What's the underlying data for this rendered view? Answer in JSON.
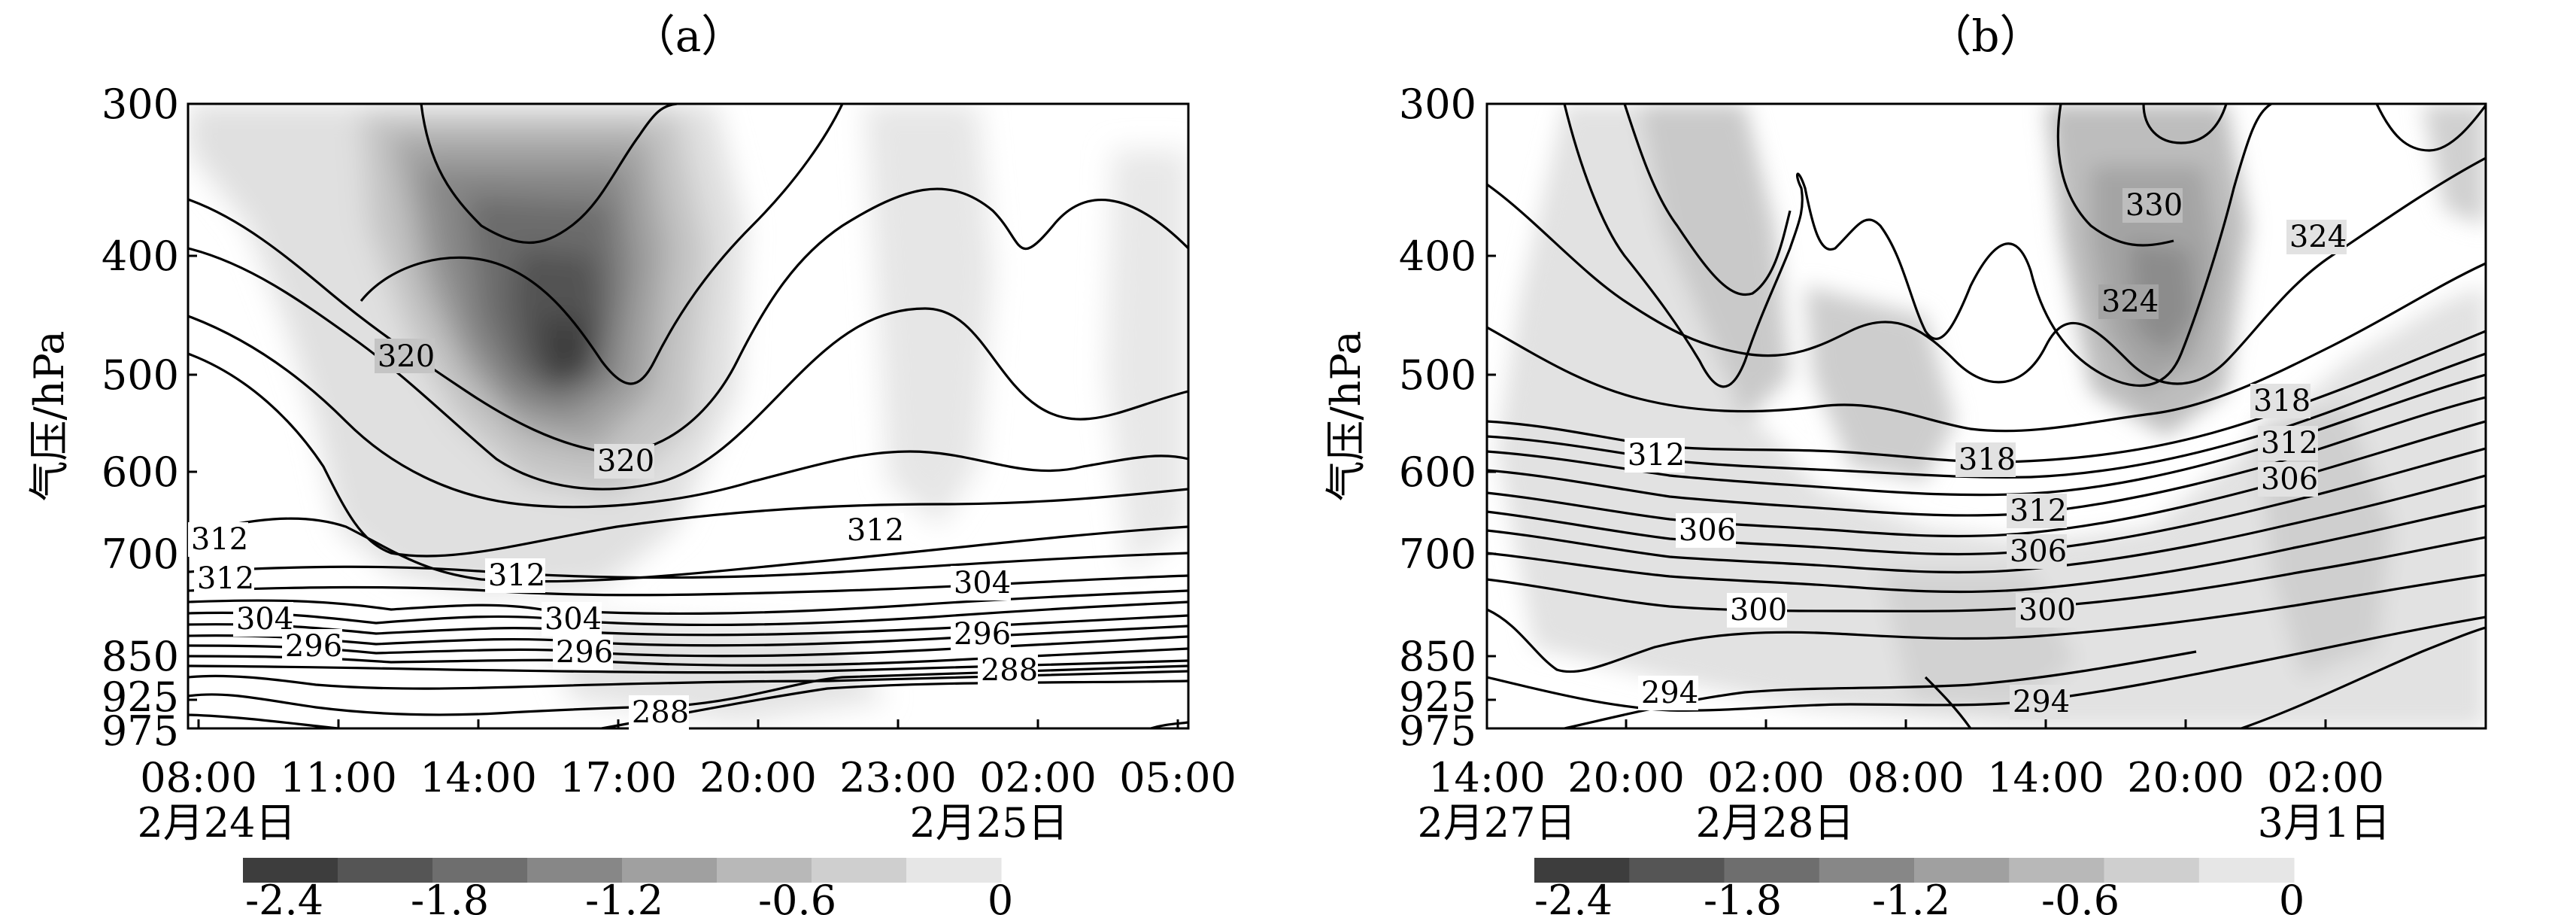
{
  "chart_data": [
    {
      "type": "contour",
      "title": "（a）",
      "ylabel": "气压/hPa",
      "y_ticks": [
        "300",
        "400",
        "500",
        "600",
        "700",
        "850",
        "925",
        "975"
      ],
      "x_ticks": [
        "08:00",
        "11:00",
        "14:00",
        "17:00",
        "20:00",
        "23:00",
        "02:00",
        "05:00"
      ],
      "dates": [
        {
          "label": "2月24日",
          "at": "08:00"
        },
        {
          "label": "2月25日",
          "at": "02:00"
        }
      ],
      "contour_labels": [
        "320",
        "320",
        "312",
        "312",
        "312",
        "312",
        "304",
        "304",
        "304",
        "296",
        "296",
        "296",
        "288",
        "288"
      ],
      "shading_levels": [
        "-2.4",
        "-1.8",
        "-1.2",
        "-0.6",
        "0"
      ],
      "shading_colors": [
        "#3d3d3d",
        "#555555",
        "#6e6e6e",
        "#878787",
        "#a0a0a0",
        "#b8b8b8",
        "#cfcfcf",
        "#e6e6e6"
      ],
      "shading_min_note": "strongest descent core near 17:00, 500 hPa"
    },
    {
      "type": "contour",
      "title": "（b）",
      "ylabel": "气压/hPa",
      "y_ticks": [
        "300",
        "400",
        "500",
        "600",
        "700",
        "850",
        "925",
        "975"
      ],
      "x_ticks": [
        "14:00",
        "20:00",
        "02:00",
        "08:00",
        "14:00",
        "20:00",
        "02:00"
      ],
      "dates": [
        {
          "label": "2月27日",
          "at": "14:00"
        },
        {
          "label": "2月28日",
          "at": "02:00"
        },
        {
          "label": "3月1日",
          "at": "02:00"
        }
      ],
      "contour_labels": [
        "330",
        "324",
        "324",
        "318",
        "318",
        "312",
        "312",
        "312",
        "306",
        "306",
        "306",
        "300",
        "300",
        "294",
        "294"
      ],
      "shading_levels": [
        "-2.4",
        "-1.8",
        "-1.2",
        "-0.6",
        "0"
      ],
      "shading_colors": [
        "#3d3d3d",
        "#555555",
        "#6e6e6e",
        "#878787",
        "#a0a0a0",
        "#b8b8b8",
        "#cfcfcf",
        "#e6e6e6"
      ]
    }
  ]
}
